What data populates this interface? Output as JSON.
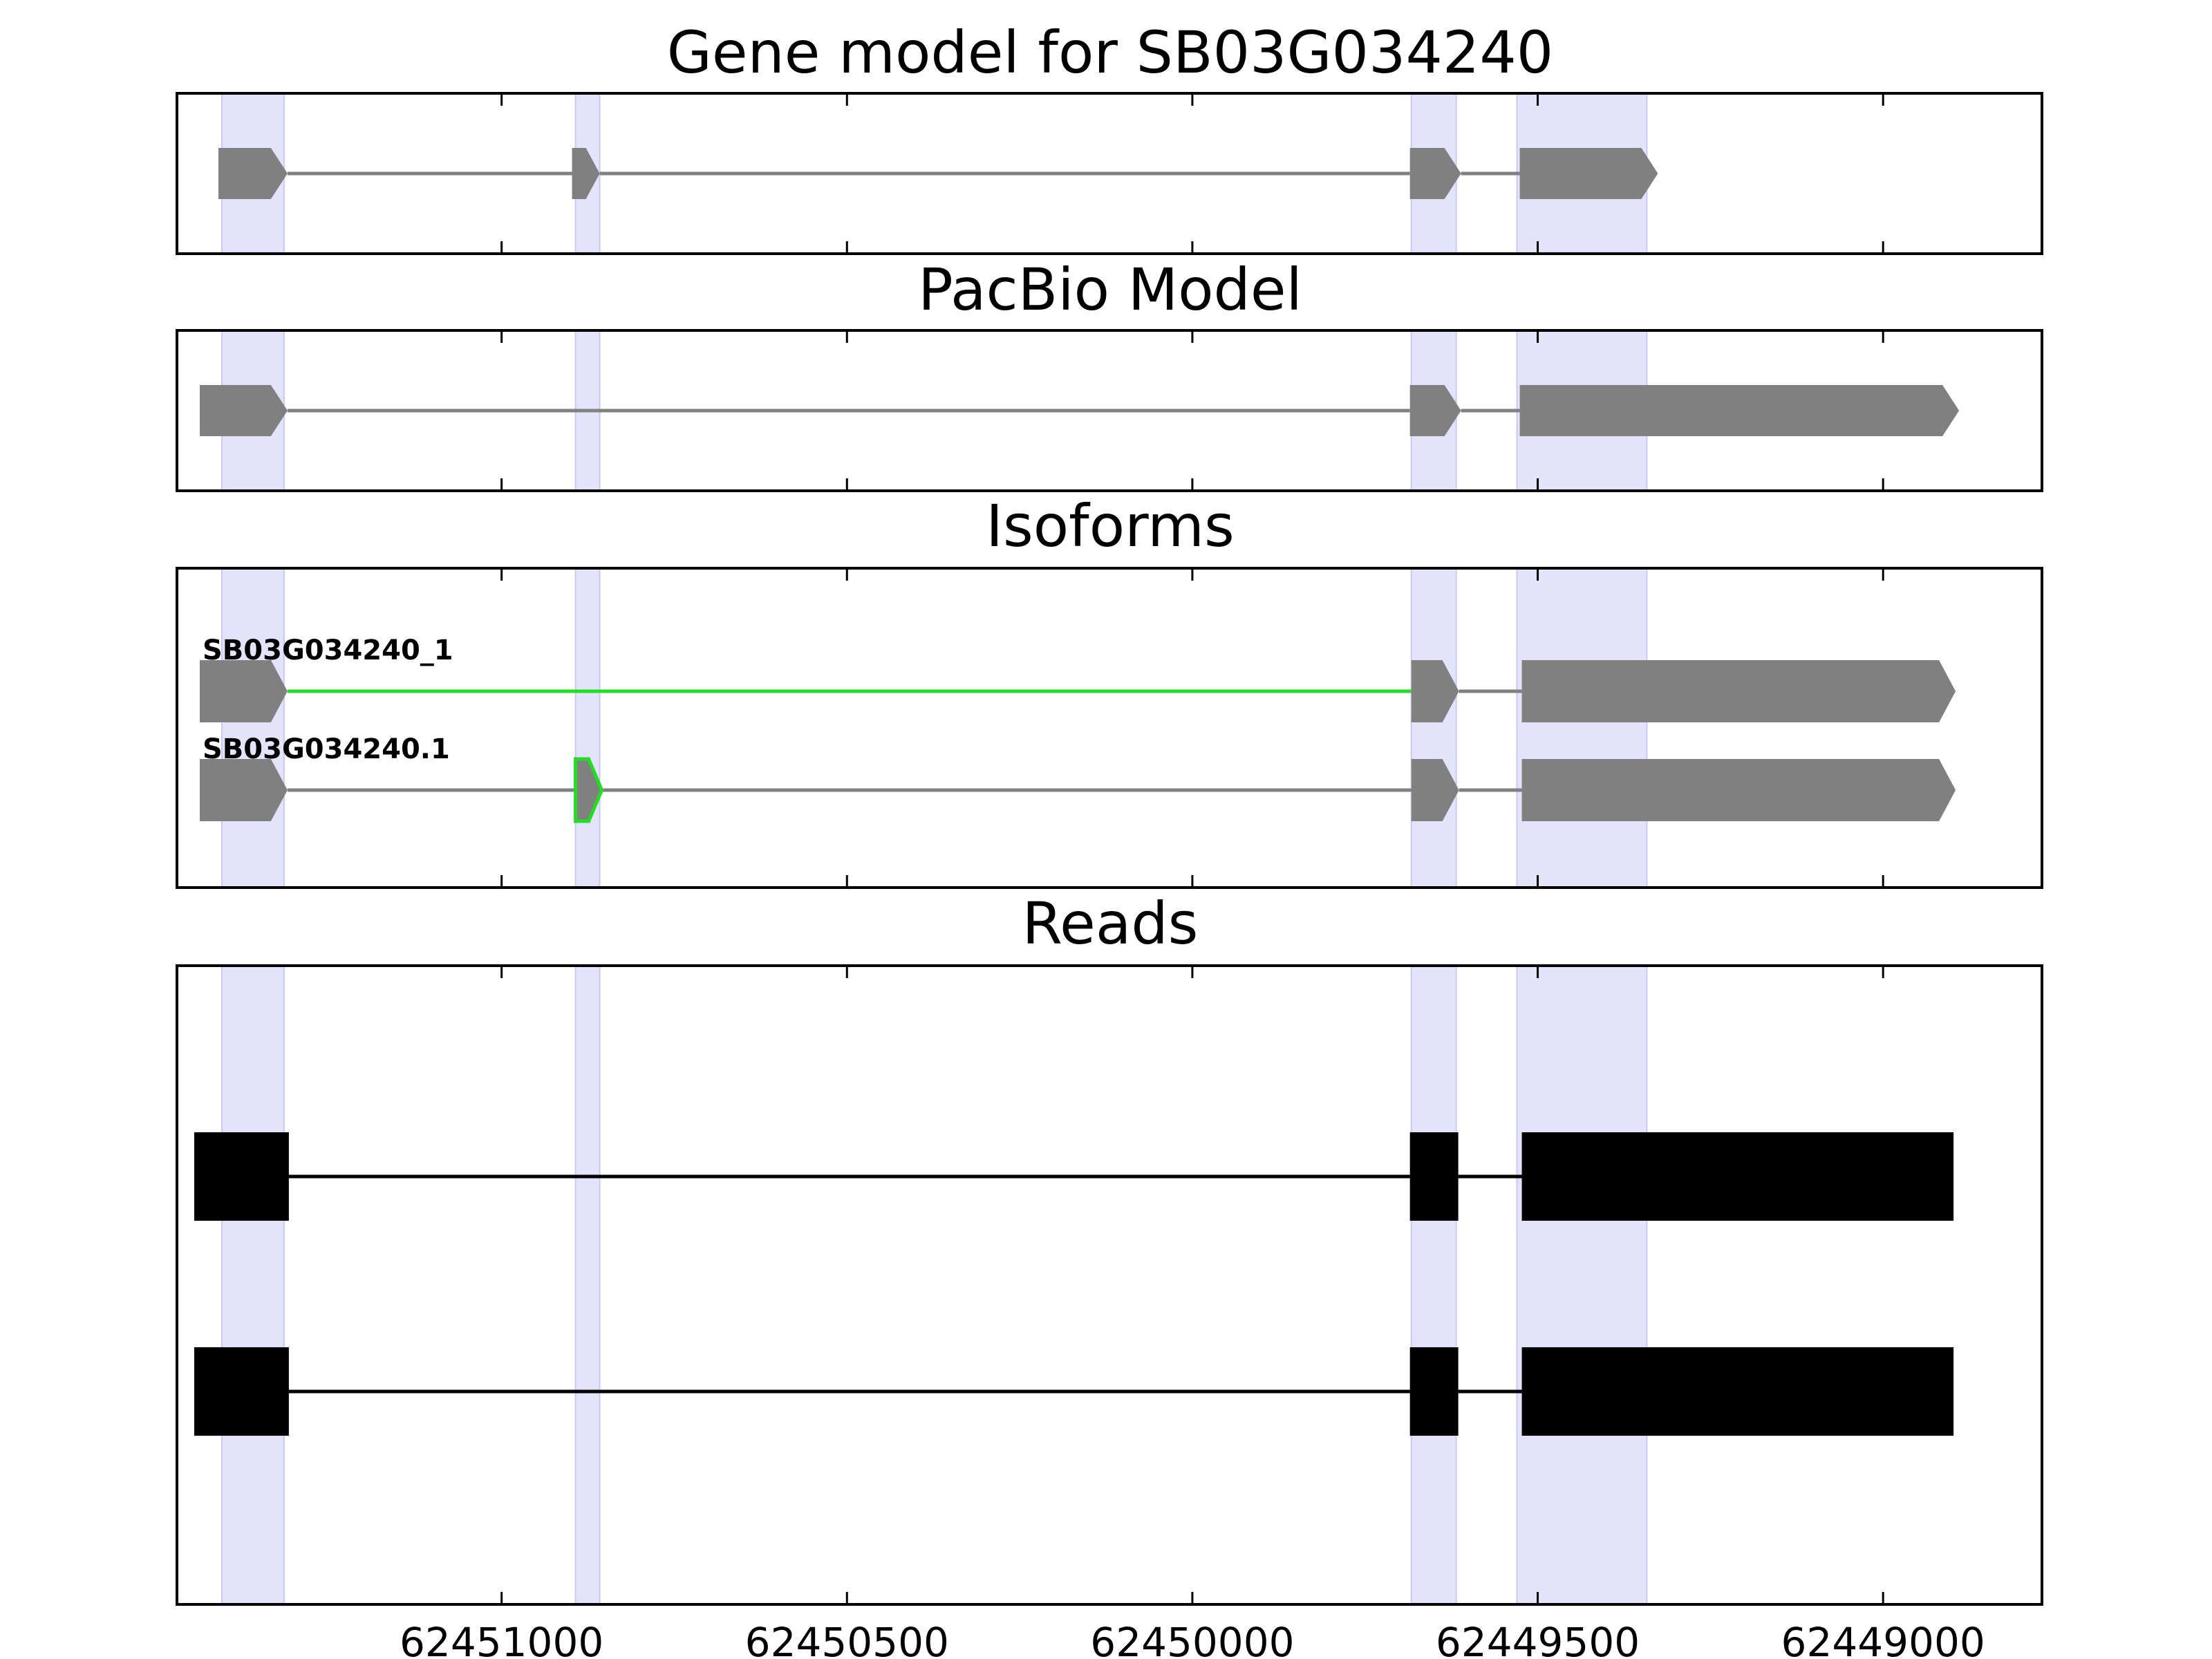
{
  "colors": {
    "exon_fill": "#808080",
    "highlight_fill": "#e3e3fc",
    "highlight_stroke": "#c8c8f0",
    "novel": "#22dd22",
    "read": "#000000",
    "intron": "#808080"
  },
  "chart_data": {
    "type": "gene-track-diagram",
    "x_axis": {
      "range": [
        62451470,
        62448770
      ],
      "direction": "decreasing",
      "ticks": [
        62451000,
        62450500,
        62450000,
        62449500,
        62449000
      ],
      "tick_labels": [
        "62451000",
        "62450500",
        "62450000",
        "62449500",
        "62449000"
      ]
    },
    "highlight_regions": [
      [
        62451405,
        62451315
      ],
      [
        62450893,
        62450858
      ],
      [
        62449683,
        62449618
      ],
      [
        62449530,
        62449342
      ]
    ],
    "panels": [
      {
        "title": "Gene model for SB03G034240",
        "rows": [
          {
            "label": "",
            "exons": [
              [
                62451410,
                62451310
              ],
              [
                62450898,
                62450858
              ],
              [
                62449685,
                62449611
              ],
              [
                62449526,
                62449326
              ]
            ],
            "novel_exons": [],
            "novel_introns": [],
            "style": "gene"
          }
        ]
      },
      {
        "title": "PacBio Model",
        "rows": [
          {
            "label": "",
            "exons": [
              [
                62451437,
                62451310
              ],
              [
                62449685,
                62449611
              ],
              [
                62449526,
                62448890
              ]
            ],
            "novel_exons": [],
            "novel_introns": [],
            "style": "gene"
          }
        ]
      },
      {
        "title": "Isoforms",
        "rows": [
          {
            "label": "SB03G034240_1",
            "exons": [
              [
                62451437,
                62451310
              ],
              [
                62449683,
                62449614
              ],
              [
                62449523,
                62448895
              ]
            ],
            "novel_exons": [],
            "novel_introns": [
              0
            ],
            "style": "gene"
          },
          {
            "label": "SB03G034240.1",
            "exons": [
              [
                62451437,
                62451310
              ],
              [
                62450893,
                62450855
              ],
              [
                62449683,
                62449614
              ],
              [
                62449523,
                62448895
              ]
            ],
            "novel_exons": [
              1
            ],
            "novel_introns": [],
            "style": "gene"
          }
        ]
      },
      {
        "title": "Reads",
        "rows": [
          {
            "label": "",
            "exons": [
              [
                62451445,
                62451308
              ],
              [
                62449685,
                62449615
              ],
              [
                62449523,
                62448898
              ]
            ],
            "novel_exons": [],
            "novel_introns": [],
            "style": "read"
          },
          {
            "label": "",
            "exons": [
              [
                62451445,
                62451308
              ],
              [
                62449685,
                62449615
              ],
              [
                62449523,
                62448898
              ]
            ],
            "novel_exons": [],
            "novel_introns": [],
            "style": "read"
          }
        ]
      }
    ]
  }
}
